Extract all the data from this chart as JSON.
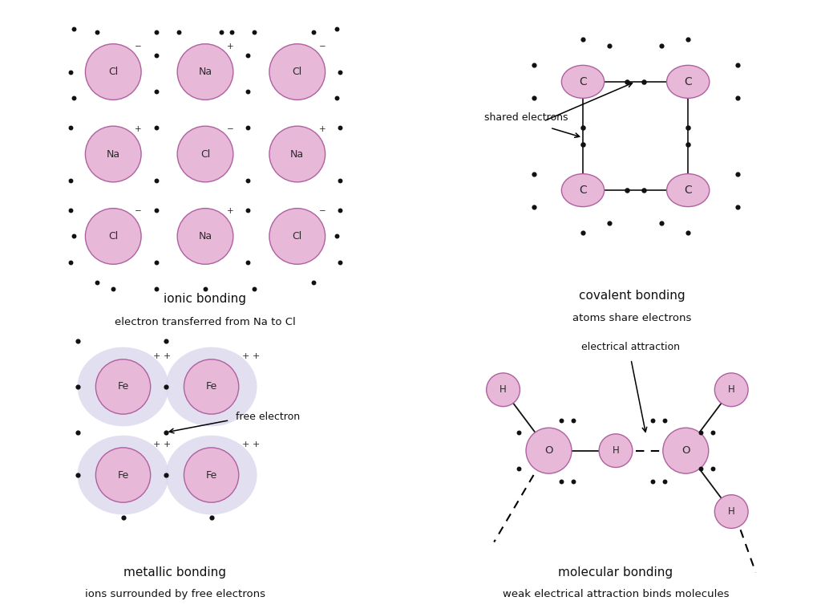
{
  "bg_color": "#ffffff",
  "atom_pink": "#e8b8d8",
  "atom_pink_edge": "#b060a0",
  "electron_color": "#111111",
  "metallic_outer": "#dcdaee",
  "caption_color": "#111111",
  "ionic_label1": "ionic bonding",
  "ionic_label2": "electron transferred from Na to Cl",
  "covalent_label1": "covalent bonding",
  "covalent_label2": "atoms share electrons",
  "metallic_label1": "metallic bonding",
  "metallic_label2": "ions surrounded by free electrons",
  "molecular_label1": "molecular bonding",
  "molecular_label2": "weak electrical attraction binds molecules",
  "shared_electrons_label": "shared electrons",
  "free_electron_label": "free electron",
  "electrical_attraction_label": "electrical attraction"
}
